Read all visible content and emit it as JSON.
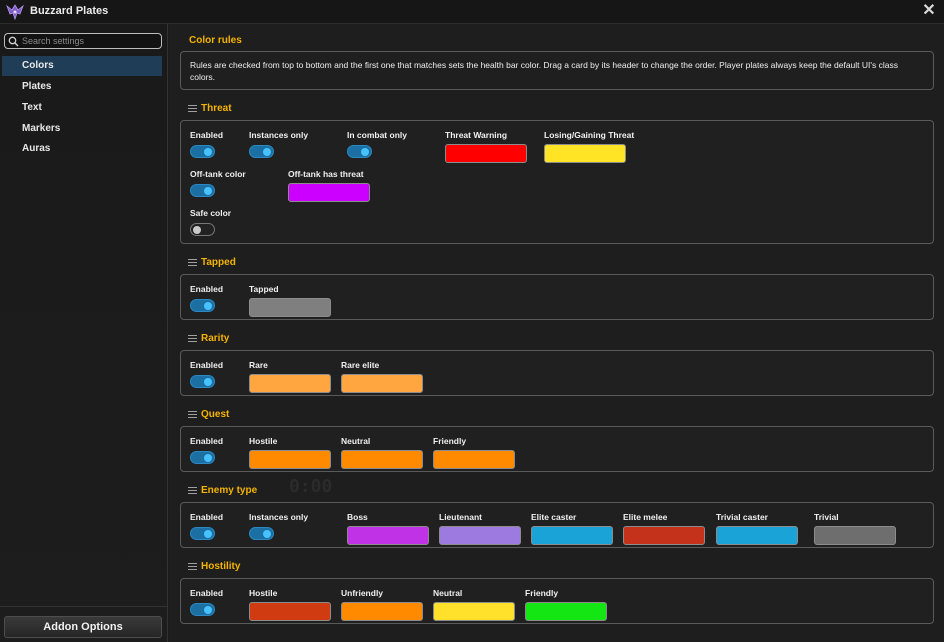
{
  "window": {
    "title": "Buzzard Plates",
    "close_icon": "close-icon",
    "logo_icon": "buzzard-logo-icon"
  },
  "sidebar": {
    "search": {
      "placeholder": "Search settings",
      "value": ""
    },
    "items": [
      {
        "label": "Colors",
        "active": true
      },
      {
        "label": "Plates",
        "active": false
      },
      {
        "label": "Text",
        "active": false
      },
      {
        "label": "Markers",
        "active": false
      },
      {
        "label": "Auras",
        "active": false
      }
    ],
    "addon_options_label": "Addon Options"
  },
  "main": {
    "section_title": "Color rules",
    "description": "Rules are checked from top to bottom and the first one that matches sets the health bar color. Drag a card by its header to change the order. Player plates always keep the default UI's class colors.",
    "watermark": "0:00",
    "groups": [
      {
        "title": "Threat",
        "toggles": [
          {
            "label": "Enabled",
            "on": true
          },
          {
            "label": "Instances only",
            "on": true
          },
          {
            "label": "In combat only",
            "on": true
          },
          {
            "label": "Off-tank color",
            "on": true
          },
          {
            "label": "Safe color",
            "on": false
          }
        ],
        "colors": [
          {
            "label": "Threat Warning",
            "color": "#ff0000"
          },
          {
            "label": "Losing/Gaining Threat",
            "color": "#ffe426"
          },
          {
            "label": "Off-tank has threat",
            "color": "#cc00ff"
          }
        ]
      },
      {
        "title": "Tapped",
        "toggles": [
          {
            "label": "Enabled",
            "on": true
          }
        ],
        "colors": [
          {
            "label": "Tapped",
            "color": "#7f7f7f"
          }
        ]
      },
      {
        "title": "Rarity",
        "toggles": [
          {
            "label": "Enabled",
            "on": true
          }
        ],
        "colors": [
          {
            "label": "Rare",
            "color": "#ffa640"
          },
          {
            "label": "Rare elite",
            "color": "#ffa640"
          }
        ]
      },
      {
        "title": "Quest",
        "toggles": [
          {
            "label": "Enabled",
            "on": true
          }
        ],
        "colors": [
          {
            "label": "Hostile",
            "color": "#ff8a00"
          },
          {
            "label": "Neutral",
            "color": "#ff8a00"
          },
          {
            "label": "Friendly",
            "color": "#ff8a00"
          }
        ]
      },
      {
        "title": "Enemy type",
        "toggles": [
          {
            "label": "Enabled",
            "on": true
          },
          {
            "label": "Instances only",
            "on": true
          }
        ],
        "colors": [
          {
            "label": "Boss",
            "color": "#c032e6"
          },
          {
            "label": "Lieutenant",
            "color": "#9c7ae0"
          },
          {
            "label": "Elite caster",
            "color": "#1aa3d6"
          },
          {
            "label": "Elite melee",
            "color": "#c4321c"
          },
          {
            "label": "Trivial caster",
            "color": "#1aa3d6"
          },
          {
            "label": "Trivial",
            "color": "#6e6e6e"
          }
        ]
      },
      {
        "title": "Hostility",
        "toggles": [
          {
            "label": "Enabled",
            "on": true
          }
        ],
        "colors": [
          {
            "label": "Hostile",
            "color": "#d13b12"
          },
          {
            "label": "Unfriendly",
            "color": "#ff8a00"
          },
          {
            "label": "Neutral",
            "color": "#ffe02a"
          },
          {
            "label": "Friendly",
            "color": "#13e613"
          }
        ]
      }
    ]
  }
}
